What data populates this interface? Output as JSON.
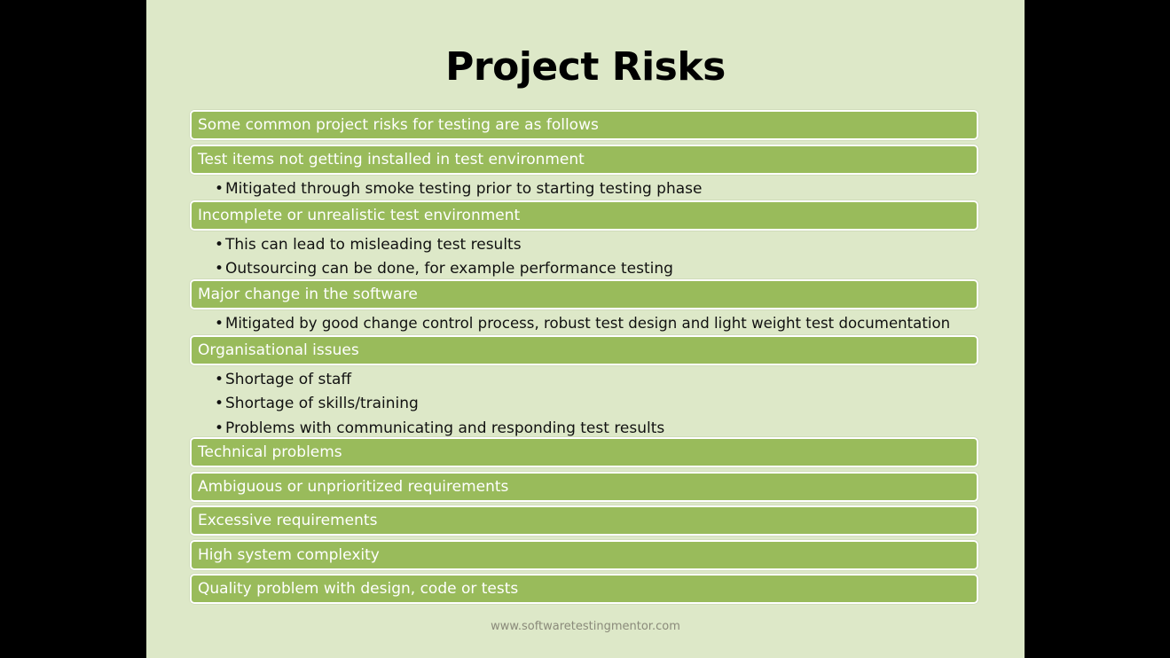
{
  "slide": {
    "title": "Project Risks",
    "footer": "www.softwaretestingmentor.com",
    "colors": {
      "background": "#dde8c8",
      "bar": "#99bb5b",
      "bar_text": "#ffffff",
      "title": "#000000"
    },
    "bars": [
      "Some common project risks for testing are as follows",
      "Test items not getting installed in test environment",
      "Incomplete  or unrealistic test environment",
      "Major change in the software",
      "Organisational issues",
      "Technical problems",
      "Ambiguous or unprioritized requirements",
      "Excessive requirements",
      "High system complexity",
      "Quality problem with design, code or tests"
    ],
    "bullets": [
      "Mitigated through smoke testing prior to starting testing phase",
      "This can lead to misleading test results",
      "Outsourcing can be done, for example performance testing",
      "Mitigated by good change control process, robust test design and light weight test documentation",
      "Shortage of staff",
      "Shortage of skills/training",
      "Problems with communicating and responding test results"
    ]
  }
}
